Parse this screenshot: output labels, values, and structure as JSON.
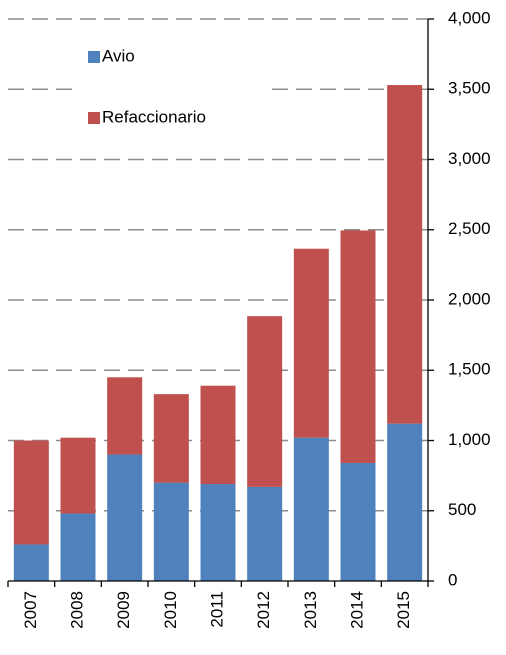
{
  "chart_data": {
    "type": "stacked-bar",
    "categories": [
      "2007",
      "2008",
      "2009",
      "2010",
      "2011",
      "2012",
      "2013",
      "2014",
      "2015"
    ],
    "series": [
      {
        "name": "Avio",
        "color": "#4f81bd",
        "values": [
          260,
          480,
          900,
          700,
          690,
          670,
          1020,
          840,
          1120
        ]
      },
      {
        "name": "Refaccionario",
        "color": "#c0504d",
        "values": [
          740,
          540,
          550,
          630,
          700,
          1215,
          1345,
          1655,
          2410
        ]
      }
    ],
    "ylim": [
      0,
      4000
    ],
    "yticks": [
      0,
      500,
      {
        "value": 1000,
        "label": "1,000"
      },
      {
        "value": 1500,
        "label": "1,500"
      },
      {
        "value": 2000,
        "label": "2,000"
      },
      {
        "value": 2500,
        "label": "2,500"
      },
      {
        "value": 3000,
        "label": "3,000"
      },
      {
        "value": 3500,
        "label": "3,500"
      },
      {
        "value": 4000,
        "label": "4,000"
      }
    ],
    "grid": true
  }
}
